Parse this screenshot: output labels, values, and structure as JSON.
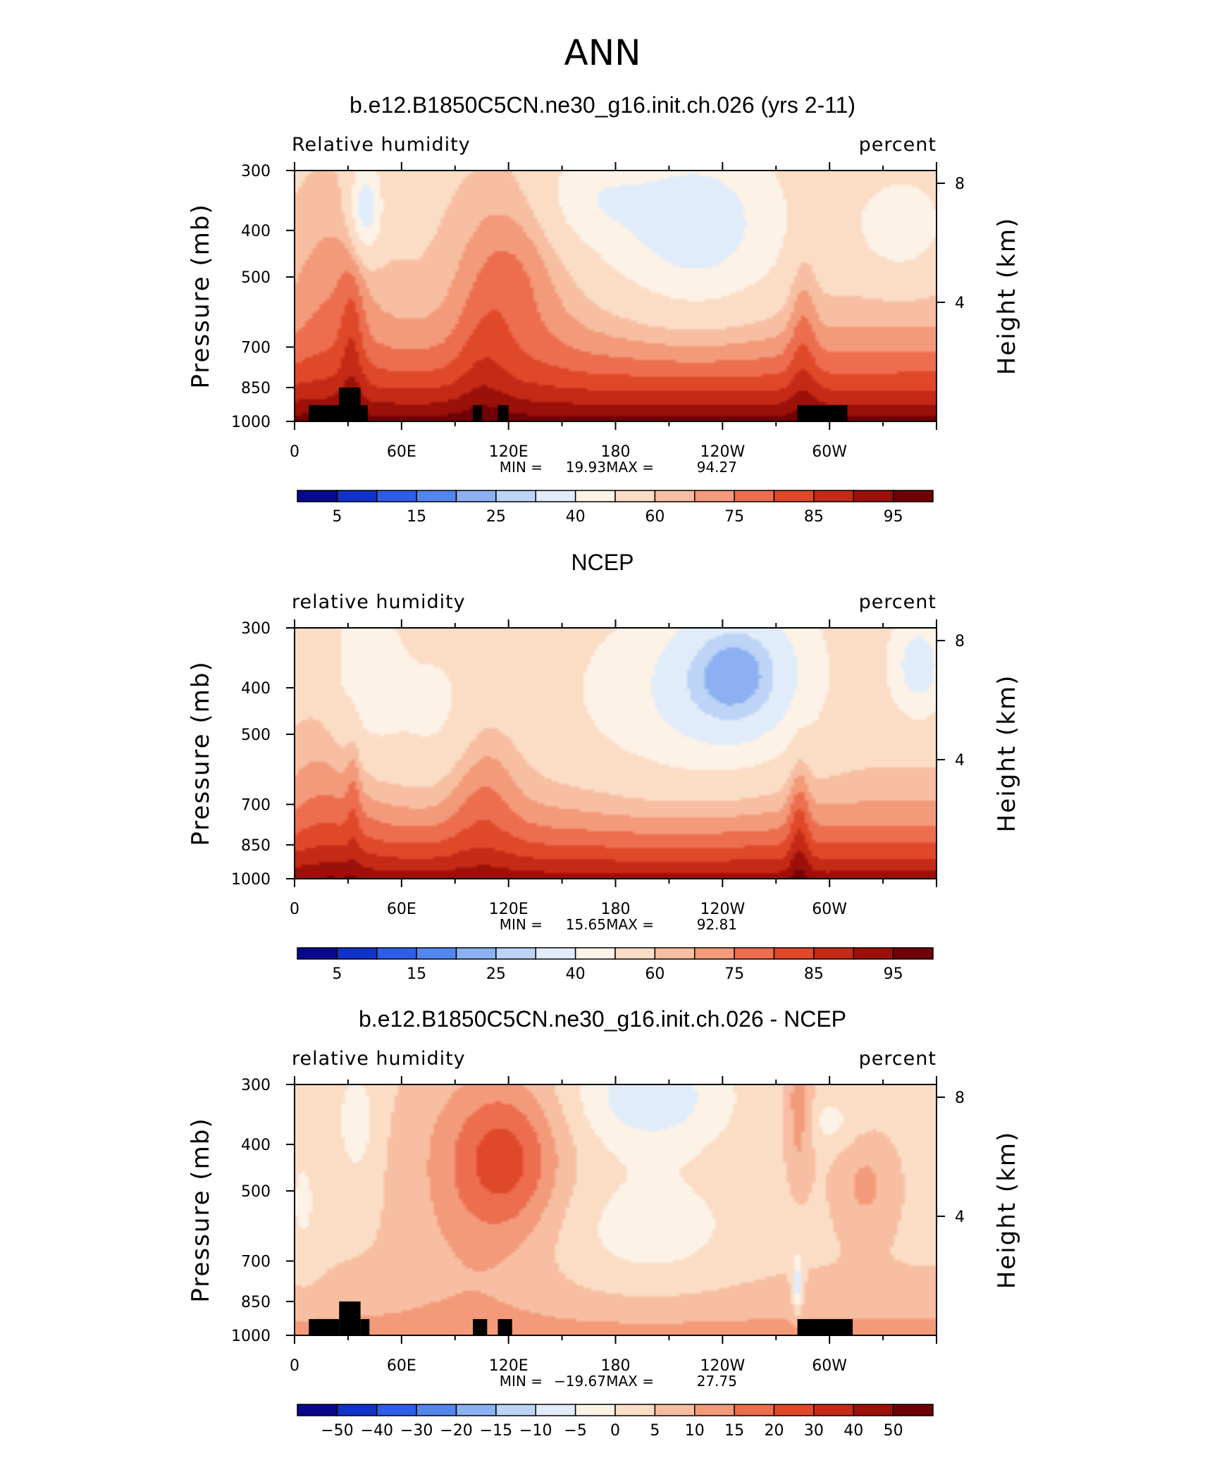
{
  "title": "ANN",
  "colors": {
    "model": [
      "#08088c",
      "#1032c8",
      "#2e5ee8",
      "#5486f0",
      "#8cb0f2",
      "#bdd4f7",
      "#e1ecfb",
      "#fdf2e6",
      "#fbdcc5",
      "#f7bea1",
      "#f39a7a",
      "#ec6e4e",
      "#e0482a",
      "#c42a16",
      "#9b1008",
      "#6e0006"
    ],
    "diff": [
      "#08088c",
      "#1032c8",
      "#2e5ee8",
      "#5486f0",
      "#8cb0f2",
      "#bdd4f7",
      "#e1ecfb",
      "#fdf2e6",
      "#fbdcc5",
      "#f7bea1",
      "#f39a7a",
      "#ec6e4e",
      "#e0482a",
      "#c42a16",
      "#9b1008",
      "#6e0006"
    ]
  },
  "chart_data": [
    {
      "type": "heatmap",
      "title": "b.e12.B1850C5CN.ne30_g16.init.ch.026 (yrs 2-11)",
      "corner_left": "Relative humidity",
      "corner_right": "percent",
      "ylabel": "Pressure (mb)",
      "ylabel_right": "Height (km)",
      "xticks": [
        "0",
        "60E",
        "120E",
        "180",
        "120W",
        "60W"
      ],
      "xtick_lon": [
        0,
        60,
        120,
        180,
        240,
        300
      ],
      "xlim": [
        0,
        360
      ],
      "yticks": [
        "300",
        "400",
        "500",
        "700",
        "850",
        "1000"
      ],
      "ytick_p": [
        300,
        400,
        500,
        700,
        850,
        1000
      ],
      "ylim": [
        1000,
        300
      ],
      "yticks_right": [
        "8",
        "4"
      ],
      "ytick_right_km": [
        8,
        4
      ],
      "stats": {
        "min_label": "MIN =",
        "min": "19.93",
        "max_label": "MAX =",
        "max": "94.27"
      },
      "colorbar_labels": [
        "5",
        "15",
        "25",
        "40",
        "60",
        "75",
        "85",
        "95"
      ],
      "colormap": "model",
      "terrain": [
        [
          8,
          25,
          925
        ],
        [
          25,
          37,
          850
        ],
        [
          37,
          41,
          925
        ],
        [
          100,
          105,
          925
        ],
        [
          114,
          120,
          925
        ],
        [
          282,
          310,
          925
        ]
      ]
    },
    {
      "type": "heatmap",
      "title": "NCEP",
      "corner_left": "relative humidity",
      "corner_right": "percent",
      "ylabel": "Pressure (mb)",
      "ylabel_right": "Height (km)",
      "xticks": [
        "0",
        "60E",
        "120E",
        "180",
        "120W",
        "60W"
      ],
      "xtick_lon": [
        0,
        60,
        120,
        180,
        240,
        300
      ],
      "xlim": [
        0,
        360
      ],
      "yticks": [
        "300",
        "400",
        "500",
        "700",
        "850",
        "1000"
      ],
      "ytick_p": [
        300,
        400,
        500,
        700,
        850,
        1000
      ],
      "ylim": [
        1000,
        300
      ],
      "yticks_right": [
        "8",
        "4"
      ],
      "ytick_right_km": [
        8,
        4
      ],
      "stats": {
        "min_label": "MIN =",
        "min": "15.65",
        "max_label": "MAX =",
        "max": "92.81"
      },
      "colorbar_labels": [
        "5",
        "15",
        "25",
        "40",
        "60",
        "75",
        "85",
        "95"
      ],
      "colormap": "model",
      "terrain": []
    },
    {
      "type": "heatmap",
      "title": "b.e12.B1850C5CN.ne30_g16.init.ch.026 - NCEP",
      "corner_left": "relative humidity",
      "corner_right": "percent",
      "ylabel": "Pressure (mb)",
      "ylabel_right": "Height (km)",
      "xticks": [
        "0",
        "60E",
        "120E",
        "180",
        "120W",
        "60W"
      ],
      "xtick_lon": [
        0,
        60,
        120,
        180,
        240,
        300
      ],
      "xlim": [
        0,
        360
      ],
      "yticks": [
        "300",
        "400",
        "500",
        "700",
        "850",
        "1000"
      ],
      "ytick_p": [
        300,
        400,
        500,
        700,
        850,
        1000
      ],
      "ylim": [
        1000,
        300
      ],
      "yticks_right": [
        "8",
        "4"
      ],
      "ytick_right_km": [
        8,
        4
      ],
      "stats": {
        "min_label": "MIN =",
        "min": "−19.67",
        "max_label": "MAX =",
        "max": "27.75"
      },
      "colorbar_labels": [
        "−50",
        "−40",
        "−30",
        "−20",
        "−15",
        "−10",
        "−5",
        "0",
        "5",
        "10",
        "15",
        "20",
        "30",
        "40",
        "50"
      ],
      "colormap": "diff",
      "terrain": [
        [
          8,
          25,
          925
        ],
        [
          25,
          37,
          850
        ],
        [
          37,
          42,
          925
        ],
        [
          100,
          108,
          925
        ],
        [
          114,
          122,
          925
        ],
        [
          282,
          313,
          925
        ]
      ]
    }
  ]
}
